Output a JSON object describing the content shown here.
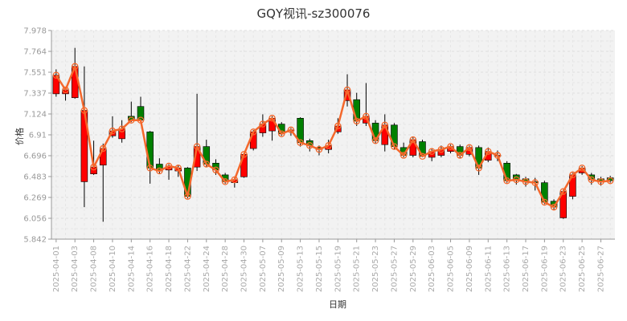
{
  "chart_data": {
    "type": "candlestick",
    "title": "GQY视讯-sz300076",
    "xlabel": "日期",
    "ylabel": "价格",
    "y_ticks": [
      "7.978",
      "7.764",
      "7.551",
      "7.337",
      "7.124",
      "6.91",
      "6.696",
      "6.483",
      "6.269",
      "6.056",
      "5.842"
    ],
    "ylim": [
      5.842,
      7.978
    ],
    "x_tick_labels": [
      "2025-04-01",
      "2025-04-03",
      "2025-04-08",
      "2025-04-10",
      "2025-04-14",
      "2025-04-16",
      "2025-04-18",
      "2025-04-22",
      "2025-04-24",
      "2025-04-28",
      "2025-04-30",
      "2025-05-07",
      "2025-05-09",
      "2025-05-13",
      "2025-05-15",
      "2025-05-19",
      "2025-05-21",
      "2025-05-23",
      "2025-05-27",
      "2025-05-29",
      "2025-06-03",
      "2025-06-05",
      "2025-06-09",
      "2025-06-11",
      "2025-06-13",
      "2025-06-17",
      "2025-06-19",
      "2025-06-23",
      "2025-06-25",
      "2025-06-27"
    ],
    "grid": true,
    "colors": {
      "up": "#ff0000",
      "down": "#008000",
      "close_line": "#f4682c",
      "marker_edge": "#f4682c",
      "background": "#f2f2f2",
      "grid": "#dddddd"
    },
    "series": [
      {
        "open": 7.33,
        "close": 7.52,
        "high": 7.58,
        "low": 7.3
      },
      {
        "open": 7.33,
        "close": 7.37,
        "high": 7.4,
        "low": 7.26
      },
      {
        "open": 7.29,
        "close": 7.61,
        "high": 7.8,
        "low": 7.28
      },
      {
        "open": 6.43,
        "close": 7.16,
        "high": 7.61,
        "low": 6.17
      },
      {
        "open": 6.51,
        "close": 6.58,
        "high": 6.85,
        "low": 6.5
      },
      {
        "open": 6.6,
        "close": 6.77,
        "high": 6.82,
        "low": 6.02
      },
      {
        "open": 6.9,
        "close": 6.95,
        "high": 7.1,
        "low": 6.88
      },
      {
        "open": 6.87,
        "close": 6.97,
        "high": 7.06,
        "low": 6.83
      },
      {
        "open": 7.1,
        "close": 7.06,
        "high": 7.25,
        "low": 7.04
      },
      {
        "open": 7.2,
        "close": 7.06,
        "high": 7.3,
        "low": 7.03
      },
      {
        "open": 6.94,
        "close": 6.57,
        "high": 6.95,
        "low": 6.41
      },
      {
        "open": 6.61,
        "close": 6.54,
        "high": 6.67,
        "low": 6.51
      },
      {
        "open": 6.55,
        "close": 6.59,
        "high": 6.61,
        "low": 6.45
      },
      {
        "open": 6.54,
        "close": 6.57,
        "high": 6.6,
        "low": 6.48
      },
      {
        "open": 6.57,
        "close": 6.28,
        "high": 6.58,
        "low": 6.26
      },
      {
        "open": 6.58,
        "close": 6.79,
        "high": 7.33,
        "low": 6.54
      },
      {
        "open": 6.79,
        "close": 6.61,
        "high": 6.86,
        "low": 6.58
      },
      {
        "open": 6.62,
        "close": 6.55,
        "high": 6.66,
        "low": 6.5
      },
      {
        "open": 6.5,
        "close": 6.43,
        "high": 6.52,
        "low": 6.41
      },
      {
        "open": 6.42,
        "close": 6.45,
        "high": 6.48,
        "low": 6.37
      },
      {
        "open": 6.48,
        "close": 6.71,
        "high": 6.72,
        "low": 6.47
      },
      {
        "open": 6.77,
        "close": 6.94,
        "high": 6.96,
        "low": 6.75
      },
      {
        "open": 6.93,
        "close": 7.02,
        "high": 7.12,
        "low": 6.89
      },
      {
        "open": 6.95,
        "close": 7.08,
        "high": 7.1,
        "low": 6.85
      },
      {
        "open": 7.02,
        "close": 6.92,
        "high": 7.04,
        "low": 6.9
      },
      {
        "open": 6.95,
        "close": 6.96,
        "high": 6.98,
        "low": 6.9
      },
      {
        "open": 7.08,
        "close": 6.83,
        "high": 7.09,
        "low": 6.79
      },
      {
        "open": 6.85,
        "close": 6.8,
        "high": 6.87,
        "low": 6.74
      },
      {
        "open": 6.78,
        "close": 6.76,
        "high": 6.8,
        "low": 6.7
      },
      {
        "open": 6.76,
        "close": 6.8,
        "high": 6.86,
        "low": 6.72
      },
      {
        "open": 6.94,
        "close": 7.0,
        "high": 7.08,
        "low": 6.92
      },
      {
        "open": 7.26,
        "close": 7.37,
        "high": 7.53,
        "low": 7.2
      },
      {
        "open": 7.27,
        "close": 7.05,
        "high": 7.34,
        "low": 7.0
      },
      {
        "open": 7.03,
        "close": 7.1,
        "high": 7.44,
        "low": 7.0
      },
      {
        "open": 7.03,
        "close": 6.85,
        "high": 7.06,
        "low": 6.82
      },
      {
        "open": 6.81,
        "close": 7.01,
        "high": 7.12,
        "low": 6.74
      },
      {
        "open": 7.01,
        "close": 6.79,
        "high": 7.03,
        "low": 6.76
      },
      {
        "open": 6.78,
        "close": 6.7,
        "high": 6.83,
        "low": 6.68
      },
      {
        "open": 6.7,
        "close": 6.86,
        "high": 6.89,
        "low": 6.68
      },
      {
        "open": 6.84,
        "close": 6.69,
        "high": 6.86,
        "low": 6.68
      },
      {
        "open": 6.68,
        "close": 6.74,
        "high": 6.77,
        "low": 6.64
      },
      {
        "open": 6.7,
        "close": 6.76,
        "high": 6.8,
        "low": 6.68
      },
      {
        "open": 6.74,
        "close": 6.79,
        "high": 6.81,
        "low": 6.72
      },
      {
        "open": 6.79,
        "close": 6.7,
        "high": 6.81,
        "low": 6.67
      },
      {
        "open": 6.71,
        "close": 6.78,
        "high": 6.8,
        "low": 6.69
      },
      {
        "open": 6.78,
        "close": 6.57,
        "high": 6.8,
        "low": 6.5
      },
      {
        "open": 6.65,
        "close": 6.74,
        "high": 6.78,
        "low": 6.63
      },
      {
        "open": 6.7,
        "close": 6.7,
        "high": 6.75,
        "low": 6.64
      },
      {
        "open": 6.62,
        "close": 6.44,
        "high": 6.64,
        "low": 6.42
      },
      {
        "open": 6.5,
        "close": 6.45,
        "high": 6.51,
        "low": 6.4
      },
      {
        "open": 6.46,
        "close": 6.43,
        "high": 6.48,
        "low": 6.38
      },
      {
        "open": 6.43,
        "close": 6.42,
        "high": 6.47,
        "low": 6.34
      },
      {
        "open": 6.42,
        "close": 6.22,
        "high": 6.44,
        "low": 6.2
      },
      {
        "open": 6.23,
        "close": 6.17,
        "high": 6.25,
        "low": 6.14
      },
      {
        "open": 6.06,
        "close": 6.33,
        "high": 6.35,
        "low": 6.05
      },
      {
        "open": 6.28,
        "close": 6.5,
        "high": 6.52,
        "low": 6.25
      },
      {
        "open": 6.52,
        "close": 6.57,
        "high": 6.59,
        "low": 6.5
      },
      {
        "open": 6.5,
        "close": 6.45,
        "high": 6.52,
        "low": 6.4
      },
      {
        "open": 6.46,
        "close": 6.43,
        "high": 6.48,
        "low": 6.39
      },
      {
        "open": 6.47,
        "close": 6.44,
        "high": 6.49,
        "low": 6.42
      }
    ]
  }
}
